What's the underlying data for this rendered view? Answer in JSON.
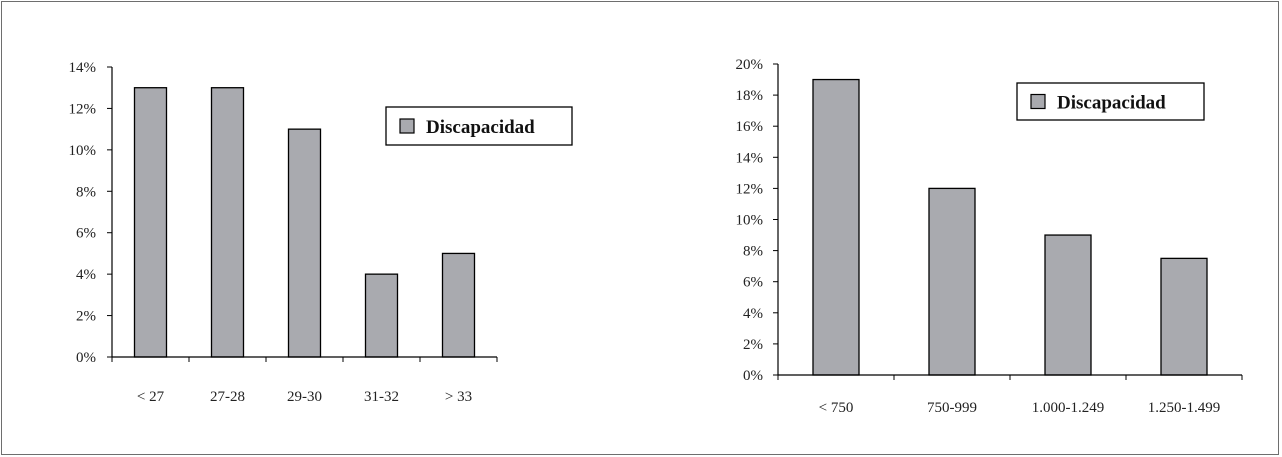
{
  "colors": {
    "bar_fill": "#a9aaaf",
    "bar_stroke": "#000000",
    "axis": "#000000",
    "frame": "#6e6e6e"
  },
  "chart_data": [
    {
      "type": "bar",
      "categories": [
        "< 27",
        "27-28",
        "29-30",
        "31-32",
        "> 33"
      ],
      "series": [
        {
          "name": "Discapacidad",
          "values": [
            13,
            13,
            11,
            4,
            5
          ]
        }
      ],
      "yticks": [
        "0%",
        "2%",
        "4%",
        "6%",
        "8%",
        "10%",
        "12%",
        "14%"
      ],
      "ylim": [
        0,
        14
      ],
      "grid": false,
      "legend": "top-right"
    },
    {
      "type": "bar",
      "categories": [
        "< 750",
        "750-999",
        "1.000-1.249",
        "1.250-1.499"
      ],
      "series": [
        {
          "name": "Discapacidad",
          "values": [
            19,
            12,
            9,
            7.5
          ]
        }
      ],
      "yticks": [
        "0%",
        "2%",
        "4%",
        "6%",
        "8%",
        "10%",
        "12%",
        "14%",
        "16%",
        "18%",
        "20%"
      ],
      "ylim": [
        0,
        20
      ],
      "grid": false,
      "legend": "top-right"
    }
  ]
}
